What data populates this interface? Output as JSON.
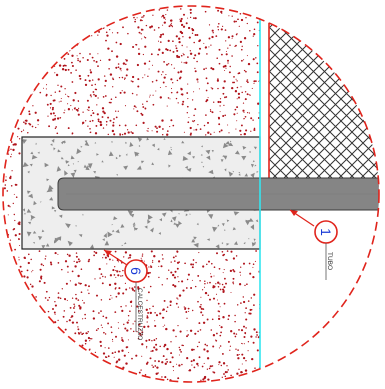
{
  "detail": {
    "callouts": [
      {
        "number": "1",
        "label": "TUBO"
      },
      {
        "number": "6",
        "label": "CALCESTRUZZO"
      }
    ]
  },
  "colors": {
    "background": "#ffffff",
    "boundary": "#e0241c",
    "soil_dots": "#b0141c",
    "concrete_fill": "#eeeeee",
    "aggregate": "#8a8a8a",
    "pipe_fill": "#858585",
    "pipe_edge": "#3a3a3a",
    "hatch": "#333333",
    "wall_line": "#33e6f0",
    "outline": "#222222",
    "callout_ring": "#e0241c",
    "callout_number": "#1a3bd6",
    "leader_line": "#e0241c",
    "label_text": "#333333"
  }
}
